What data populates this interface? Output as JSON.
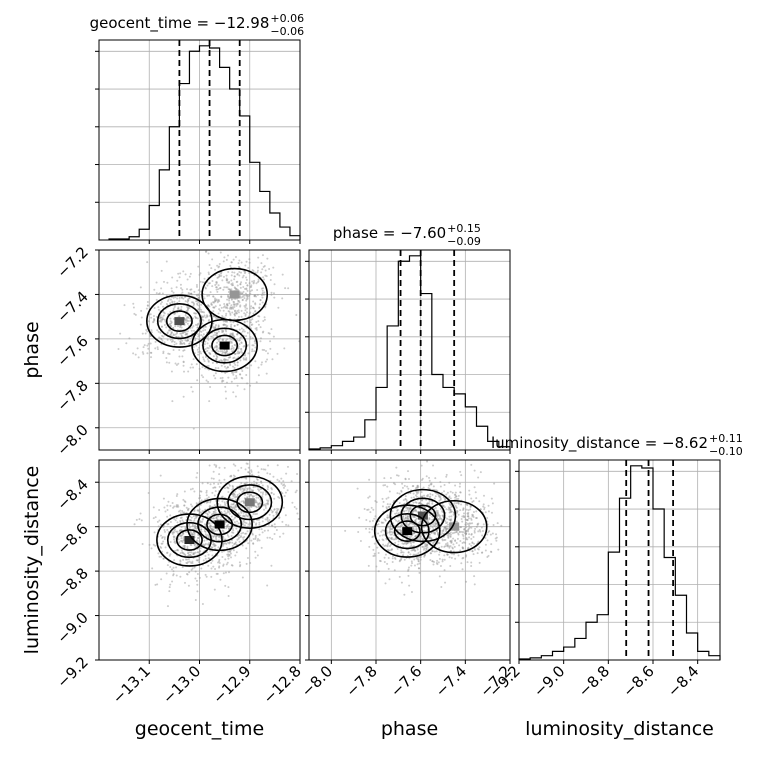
{
  "chart_data": [
    {
      "type": "histogram",
      "panel": "geocent_time",
      "title": "geocent_time",
      "stats": {
        "median": -12.98,
        "plus": 0.06,
        "minus": 0.06
      },
      "xlim": [
        -13.2,
        -12.8
      ],
      "x_ticks": [
        -13.1,
        -13.0,
        -12.9,
        -12.8
      ],
      "x_tick_labels": [
        "−13.1",
        "−13.0",
        "−12.9",
        "−12.8"
      ],
      "quantiles": [
        -13.04,
        -12.98,
        -12.92
      ],
      "bin_edges": [
        -13.18,
        -13.16,
        -13.14,
        -13.12,
        -13.1,
        -13.08,
        -13.06,
        -13.04,
        -13.02,
        -13.0,
        -12.98,
        -12.96,
        -12.94,
        -12.92,
        -12.9,
        -12.88,
        -12.86,
        -12.84,
        -12.82,
        -12.8
      ],
      "counts": [
        1,
        1,
        3,
        10,
        32,
        65,
        105,
        145,
        175,
        180,
        178,
        160,
        140,
        115,
        72,
        45,
        25,
        12,
        4
      ]
    },
    {
      "type": "histogram",
      "panel": "phase",
      "title": "phase",
      "stats": {
        "median": -7.6,
        "plus": 0.15,
        "minus": 0.09
      },
      "xlim": [
        -8.1,
        -7.2
      ],
      "x_ticks": [
        -8.0,
        -7.8,
        -7.6,
        -7.4,
        -7.2
      ],
      "x_tick_labels": [
        "−8.0",
        "−7.8",
        "−7.6",
        "−7.4",
        "−7.2"
      ],
      "quantiles": [
        -7.69,
        -7.6,
        -7.45
      ],
      "bin_edges": [
        -8.1,
        -8.05,
        -8.0,
        -7.95,
        -7.9,
        -7.85,
        -7.8,
        -7.75,
        -7.7,
        -7.65,
        -7.6,
        -7.55,
        -7.5,
        -7.45,
        -7.4,
        -7.35,
        -7.3,
        -7.25,
        -7.2
      ],
      "counts": [
        1,
        2,
        4,
        8,
        12,
        28,
        58,
        115,
        175,
        180,
        145,
        70,
        58,
        52,
        40,
        22,
        8,
        3
      ]
    },
    {
      "type": "histogram",
      "panel": "luminosity_distance",
      "title": "luminosity_distance",
      "stats": {
        "median": -8.62,
        "plus": 0.11,
        "minus": 0.1
      },
      "xlim": [
        -9.2,
        -8.3
      ],
      "x_ticks": [
        -9.2,
        -9.0,
        -8.8,
        -8.6,
        -8.4
      ],
      "x_tick_labels": [
        "−9.2",
        "−9.0",
        "−8.8",
        "−8.6",
        "−8.4"
      ],
      "quantiles": [
        -8.72,
        -8.62,
        -8.51
      ],
      "bin_edges": [
        -9.2,
        -9.15,
        -9.1,
        -9.05,
        -9.0,
        -8.95,
        -8.9,
        -8.85,
        -8.8,
        -8.75,
        -8.7,
        -8.65,
        -8.6,
        -8.55,
        -8.5,
        -8.45,
        -8.4,
        -8.35,
        -8.3
      ],
      "counts": [
        1,
        2,
        4,
        8,
        12,
        20,
        35,
        42,
        100,
        150,
        180,
        178,
        140,
        95,
        60,
        25,
        8,
        4
      ]
    },
    {
      "type": "scatter-density",
      "panel": "phase vs geocent_time",
      "x_param": "geocent_time",
      "y_param": "phase",
      "xlim": [
        -13.2,
        -12.8
      ],
      "ylim": [
        -8.1,
        -7.2
      ],
      "y_ticks": [
        -8.0,
        -7.8,
        -7.6,
        -7.4,
        -7.2
      ],
      "y_tick_labels": [
        "−8.0",
        "−7.8",
        "−7.6",
        "−7.4",
        "−7.2"
      ],
      "density_peaks": [
        {
          "x": -13.04,
          "y": -7.52,
          "weight": 0.6
        },
        {
          "x": -12.95,
          "y": -7.63,
          "weight": 1.0
        },
        {
          "x": -12.93,
          "y": -7.4,
          "weight": 0.25
        }
      ]
    },
    {
      "type": "scatter-density",
      "panel": "luminosity_distance vs geocent_time",
      "x_param": "geocent_time",
      "y_param": "luminosity_distance",
      "xlim": [
        -13.2,
        -12.8
      ],
      "ylim": [
        -9.2,
        -8.3
      ],
      "y_ticks": [
        -9.2,
        -9.0,
        -8.8,
        -8.6,
        -8.4
      ],
      "y_tick_labels": [
        "−9.2",
        "−9.0",
        "−8.8",
        "−8.6",
        "−8.4"
      ],
      "density_peaks": [
        {
          "x": -13.02,
          "y": -8.66,
          "weight": 0.8
        },
        {
          "x": -12.96,
          "y": -8.59,
          "weight": 1.0
        },
        {
          "x": -12.9,
          "y": -8.49,
          "weight": 0.4
        }
      ]
    },
    {
      "type": "scatter-density",
      "panel": "luminosity_distance vs phase",
      "x_param": "phase",
      "y_param": "luminosity_distance",
      "xlim": [
        -8.1,
        -7.2
      ],
      "ylim": [
        -9.2,
        -8.3
      ],
      "density_peaks": [
        {
          "x": -7.66,
          "y": -8.62,
          "weight": 1.0
        },
        {
          "x": -7.59,
          "y": -8.55,
          "weight": 0.6
        },
        {
          "x": -7.45,
          "y": -8.6,
          "weight": 0.25
        }
      ]
    }
  ],
  "axis_labels": {
    "geocent_time": "geocent_time",
    "phase": "phase",
    "luminosity_distance": "luminosity_distance"
  }
}
